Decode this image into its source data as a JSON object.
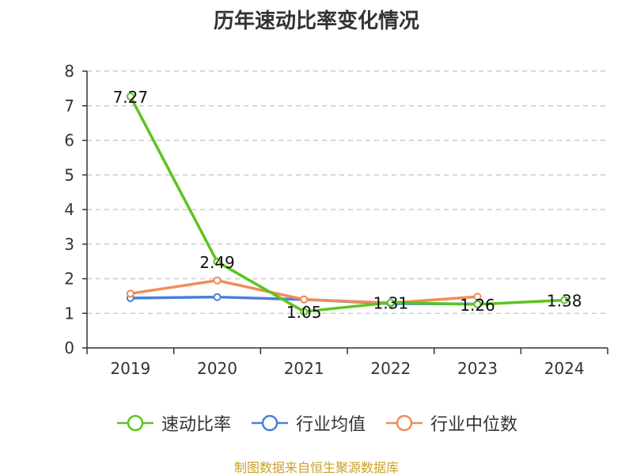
{
  "title": "历年速动比率变化情况",
  "source": "制图数据来自恒生聚源数据库",
  "chart_data": {
    "type": "line",
    "categories": [
      "2019",
      "2020",
      "2021",
      "2022",
      "2023",
      "2024"
    ],
    "ylim": [
      0,
      8
    ],
    "yticks": [
      0,
      1,
      2,
      3,
      4,
      5,
      6,
      7,
      8
    ],
    "grid": true,
    "legend_position": "bottom",
    "series": [
      {
        "name": "速动比率",
        "color": "#5cc41f",
        "values": [
          7.27,
          2.49,
          1.05,
          1.31,
          1.26,
          1.38
        ],
        "labels": [
          "7.27",
          "2.49",
          "1.05",
          "1.31",
          "1.26",
          "1.38"
        ]
      },
      {
        "name": "行业均值",
        "color": "#4a7fd8",
        "values": [
          1.44,
          1.47,
          1.4,
          1.28,
          1.27,
          null
        ]
      },
      {
        "name": "行业中位数",
        "color": "#f08c5a",
        "values": [
          1.57,
          1.95,
          1.4,
          1.3,
          1.48,
          null
        ]
      }
    ]
  }
}
